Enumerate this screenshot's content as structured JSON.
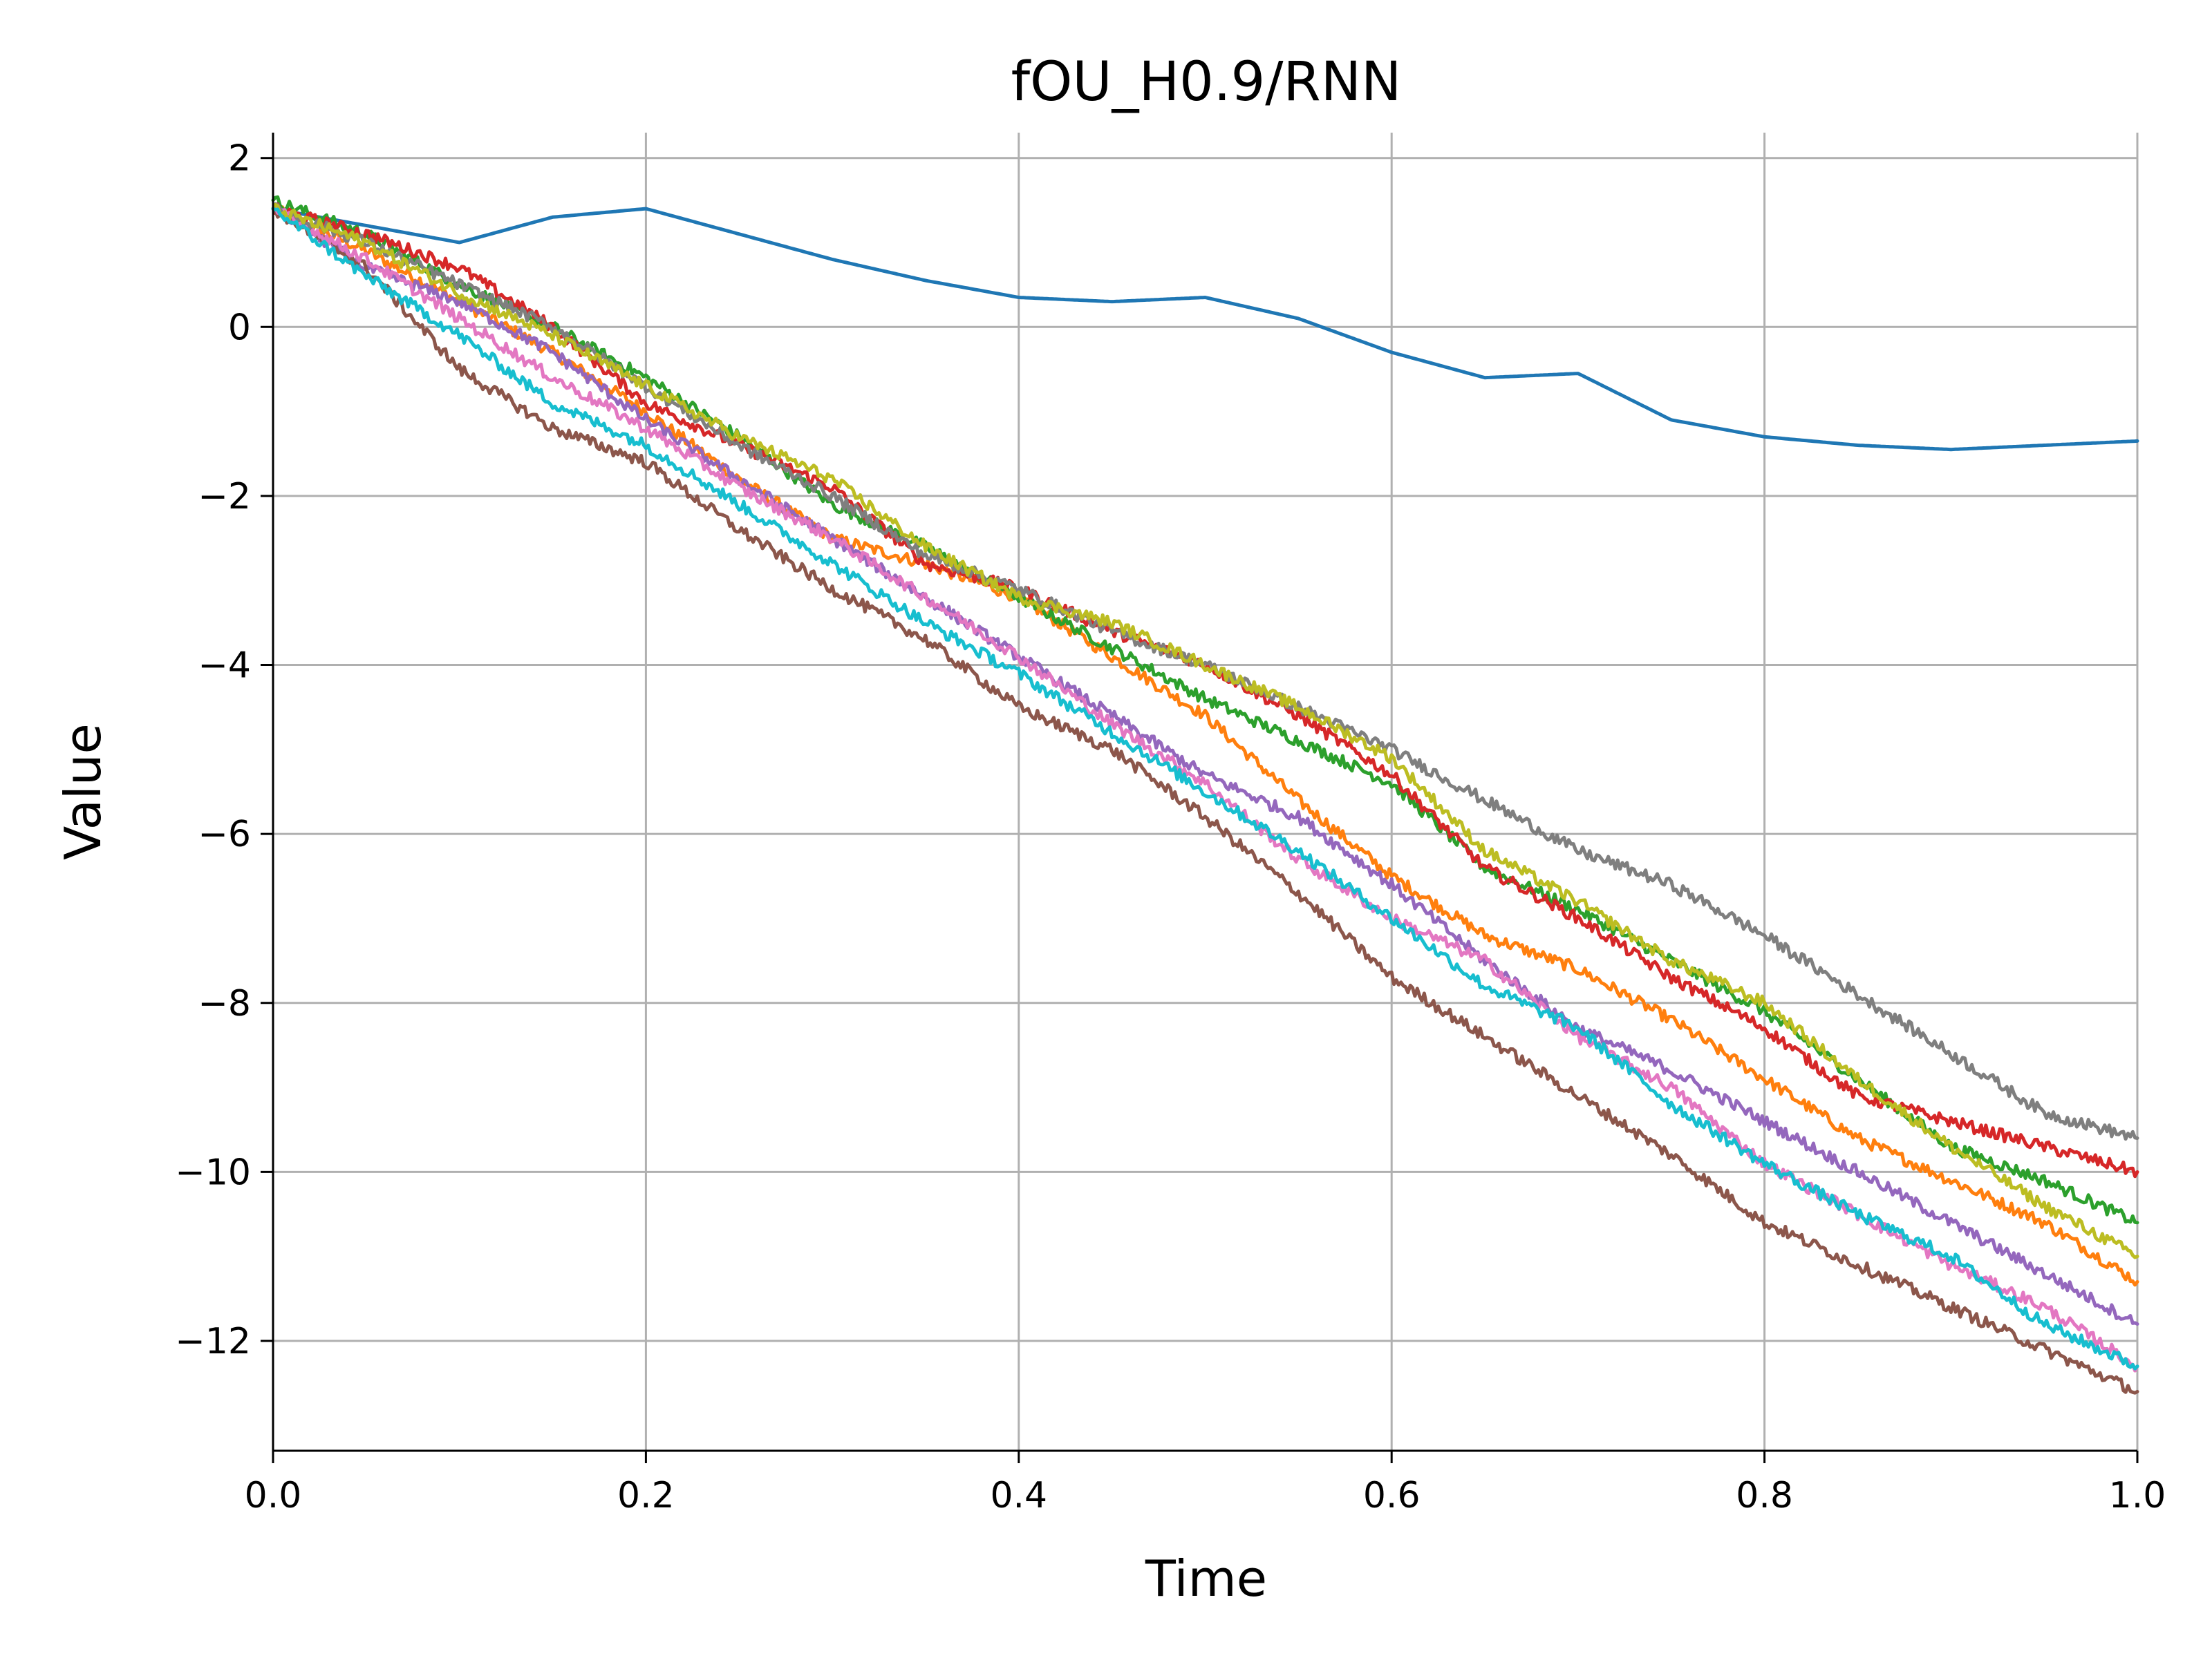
{
  "chart_data": {
    "type": "line",
    "title": "fOU_H0.9/RNN",
    "xlabel": "Time",
    "ylabel": "Value",
    "xlim": [
      0.0,
      1.0
    ],
    "ylim": [
      -13.3,
      2.3
    ],
    "xticks": [
      0.0,
      0.2,
      0.4,
      0.6,
      0.8,
      1.0
    ],
    "xtick_labels": [
      "0.0",
      "0.2",
      "0.4",
      "0.6",
      "0.8",
      "1.0"
    ],
    "yticks": [
      2,
      0,
      -2,
      -4,
      -6,
      -8,
      -10,
      -12
    ],
    "ytick_labels": [
      "2",
      "0",
      "−2",
      "−4",
      "−6",
      "−8",
      "−10",
      "−12"
    ],
    "grid": true,
    "x": [
      0.0,
      0.05,
      0.1,
      0.15,
      0.2,
      0.25,
      0.3,
      0.35,
      0.4,
      0.45,
      0.5,
      0.55,
      0.6,
      0.65,
      0.7,
      0.75,
      0.8,
      0.85,
      0.9,
      0.95,
      1.0
    ],
    "series": [
      {
        "color": "#1f77b4",
        "values": [
          1.4,
          1.2,
          1.0,
          1.3,
          1.4,
          1.1,
          0.8,
          0.55,
          0.35,
          0.3,
          0.35,
          0.1,
          -0.3,
          -0.6,
          -0.55,
          -1.1,
          -1.3,
          -1.4,
          -1.45,
          -1.4,
          -1.35
        ]
      },
      {
        "color": "#ff7f0e",
        "values": [
          1.4,
          0.9,
          0.3,
          -0.3,
          -1.0,
          -1.8,
          -2.5,
          -2.8,
          -3.2,
          -3.9,
          -4.6,
          -5.6,
          -6.5,
          -7.2,
          -7.6,
          -8.2,
          -8.9,
          -9.6,
          -10.1,
          -10.6,
          -11.3
        ]
      },
      {
        "color": "#2ca02c",
        "values": [
          1.5,
          1.1,
          0.5,
          0.0,
          -0.6,
          -1.3,
          -2.1,
          -2.6,
          -3.2,
          -3.8,
          -4.4,
          -4.9,
          -5.4,
          -6.4,
          -6.9,
          -7.5,
          -8.1,
          -8.9,
          -9.7,
          -10.1,
          -10.6
        ]
      },
      {
        "color": "#d62728",
        "values": [
          1.4,
          1.1,
          0.7,
          0.0,
          -0.9,
          -1.4,
          -1.9,
          -2.8,
          -3.1,
          -3.6,
          -4.0,
          -4.6,
          -5.3,
          -6.4,
          -7.0,
          -7.7,
          -8.3,
          -9.1,
          -9.4,
          -9.7,
          -10.0
        ]
      },
      {
        "color": "#9467bd",
        "values": [
          1.4,
          0.7,
          0.3,
          -0.3,
          -1.1,
          -1.8,
          -2.5,
          -3.2,
          -3.9,
          -4.6,
          -5.3,
          -5.8,
          -6.6,
          -7.5,
          -8.3,
          -8.8,
          -9.4,
          -10.0,
          -10.6,
          -11.2,
          -11.8
        ]
      },
      {
        "color": "#8c564b",
        "values": [
          1.4,
          0.7,
          -0.5,
          -1.2,
          -1.6,
          -2.4,
          -3.1,
          -3.7,
          -4.5,
          -5.0,
          -5.8,
          -6.7,
          -7.7,
          -8.4,
          -9.1,
          -9.8,
          -10.6,
          -11.1,
          -11.6,
          -12.1,
          -12.6
        ]
      },
      {
        "color": "#e377c2",
        "values": [
          1.4,
          0.8,
          0.1,
          -0.6,
          -1.2,
          -1.9,
          -2.5,
          -3.2,
          -3.9,
          -4.7,
          -5.4,
          -6.3,
          -7.0,
          -7.5,
          -8.4,
          -9.0,
          -9.9,
          -10.5,
          -11.1,
          -11.6,
          -12.3
        ]
      },
      {
        "color": "#7f7f7f",
        "values": [
          1.4,
          1.0,
          0.5,
          0.0,
          -0.7,
          -1.4,
          -2.0,
          -2.7,
          -3.1,
          -3.6,
          -4.0,
          -4.5,
          -5.0,
          -5.6,
          -6.2,
          -6.6,
          -7.2,
          -7.9,
          -8.6,
          -9.3,
          -9.6
        ]
      },
      {
        "color": "#bcbd22",
        "values": [
          1.4,
          1.0,
          0.4,
          -0.1,
          -0.7,
          -1.3,
          -1.8,
          -2.6,
          -3.2,
          -3.5,
          -4.0,
          -4.5,
          -5.1,
          -6.2,
          -6.8,
          -7.5,
          -8.0,
          -8.9,
          -9.7,
          -10.4,
          -11.0
        ]
      },
      {
        "color": "#17becf",
        "values": [
          1.4,
          0.6,
          -0.1,
          -0.9,
          -1.4,
          -2.1,
          -2.8,
          -3.5,
          -4.1,
          -4.8,
          -5.5,
          -6.2,
          -7.0,
          -7.8,
          -8.3,
          -9.2,
          -9.9,
          -10.5,
          -11.0,
          -11.8,
          -12.3
        ]
      }
    ]
  }
}
